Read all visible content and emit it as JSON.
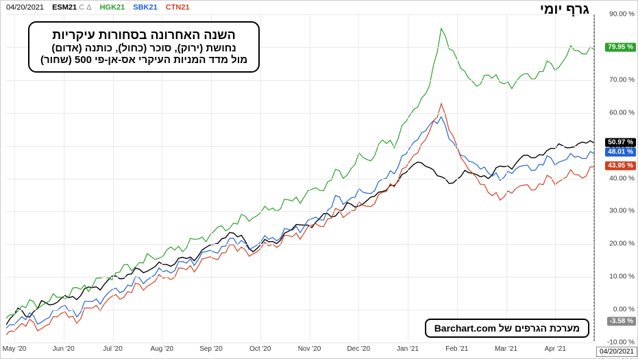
{
  "header": {
    "date": "04/20/2021",
    "symbols": [
      {
        "label": "ESM21",
        "suffix": "C Δ",
        "color": "#000000"
      },
      {
        "label": "HGK21",
        "suffix": "",
        "color": "#2aa02a"
      },
      {
        "label": "SBK21",
        "suffix": "",
        "color": "#2060d0"
      },
      {
        "label": "CTN21",
        "suffix": "",
        "color": "#d04020"
      }
    ]
  },
  "titles": {
    "top_right": "גרף יומי",
    "info_box_title": "השנה האחרונה בסחורות עיקריות",
    "info_box_line1": "נחושת (ירוק), סוכר (כחול), כותנה (אדום)",
    "info_box_line2": "מול מדד המניות העיקרי אס-אן-פי 500 (שחור)",
    "bottom_box": "מערכת הגרפים של Barchart.com"
  },
  "y_axis": {
    "min": -10,
    "max": 90,
    "step": 10,
    "label_suffix": " %",
    "tick_color": "#333333"
  },
  "x_axis": {
    "ticks": [
      "May '20",
      "Jun '20",
      "Jul '20",
      "Aug '20",
      "Sep '20",
      "Oct '20",
      "Nov '20",
      "Dec '20",
      "Jan '21",
      "Feb '21",
      "Mar '21",
      "Apr '21"
    ],
    "end_date_badge": "04/20/2021"
  },
  "badges": [
    {
      "value": "79.95 %",
      "y": 79.95,
      "bg": "#2aa02a"
    },
    {
      "value": "50.97 %",
      "y": 50.97,
      "bg": "#000000"
    },
    {
      "value": "48.01 %",
      "y": 48.01,
      "bg": "#2060d0"
    },
    {
      "value": "43.95 %",
      "y": 43.95,
      "bg": "#d04020"
    },
    {
      "value": "-3.58 %",
      "y": -3.58,
      "bg": "#888888"
    }
  ],
  "series": {
    "esm21_black": {
      "color": "#000000",
      "width": 1.4,
      "points": [
        [
          0,
          -5
        ],
        [
          2,
          0
        ],
        [
          4,
          -3
        ],
        [
          6,
          2
        ],
        [
          8,
          1
        ],
        [
          10,
          4
        ],
        [
          12,
          3
        ],
        [
          14,
          7
        ],
        [
          16,
          6
        ],
        [
          18,
          10
        ],
        [
          20,
          9
        ],
        [
          22,
          12
        ],
        [
          24,
          11
        ],
        [
          26,
          14
        ],
        [
          28,
          13
        ],
        [
          30,
          16
        ],
        [
          32,
          15
        ],
        [
          34,
          19
        ],
        [
          36,
          20
        ],
        [
          38,
          23
        ],
        [
          40,
          22
        ],
        [
          42,
          17
        ],
        [
          44,
          21
        ],
        [
          46,
          20
        ],
        [
          48,
          24
        ],
        [
          50,
          26
        ],
        [
          52,
          25
        ],
        [
          54,
          29
        ],
        [
          56,
          28
        ],
        [
          58,
          32
        ],
        [
          60,
          31
        ],
        [
          62,
          34
        ],
        [
          64,
          36
        ],
        [
          66,
          38
        ],
        [
          68,
          42
        ],
        [
          70,
          45
        ],
        [
          72,
          43
        ],
        [
          74,
          40
        ],
        [
          76,
          38
        ],
        [
          78,
          42
        ],
        [
          80,
          41
        ],
        [
          82,
          40
        ],
        [
          84,
          44
        ],
        [
          86,
          43
        ],
        [
          88,
          47
        ],
        [
          90,
          46
        ],
        [
          92,
          48
        ],
        [
          94,
          50
        ],
        [
          96,
          49
        ],
        [
          98,
          51
        ],
        [
          100,
          50.97
        ]
      ]
    },
    "hgk21_green": {
      "color": "#2aa02a",
      "width": 1.2,
      "points": [
        [
          0,
          -3
        ],
        [
          2,
          -1
        ],
        [
          4,
          2
        ],
        [
          6,
          0
        ],
        [
          8,
          4
        ],
        [
          10,
          3
        ],
        [
          12,
          7
        ],
        [
          14,
          6
        ],
        [
          16,
          10
        ],
        [
          18,
          9
        ],
        [
          20,
          13
        ],
        [
          22,
          12
        ],
        [
          24,
          16
        ],
        [
          26,
          15
        ],
        [
          28,
          19
        ],
        [
          30,
          18
        ],
        [
          32,
          22
        ],
        [
          34,
          21
        ],
        [
          36,
          25
        ],
        [
          38,
          24
        ],
        [
          40,
          28
        ],
        [
          42,
          27
        ],
        [
          44,
          31
        ],
        [
          46,
          30
        ],
        [
          48,
          34
        ],
        [
          50,
          33
        ],
        [
          52,
          37
        ],
        [
          54,
          36
        ],
        [
          56,
          42
        ],
        [
          58,
          40
        ],
        [
          60,
          47
        ],
        [
          62,
          45
        ],
        [
          64,
          52
        ],
        [
          66,
          50
        ],
        [
          68,
          58
        ],
        [
          70,
          62
        ],
        [
          72,
          68
        ],
        [
          74,
          85
        ],
        [
          76,
          78
        ],
        [
          78,
          72
        ],
        [
          80,
          68
        ],
        [
          82,
          72
        ],
        [
          84,
          70
        ],
        [
          86,
          68
        ],
        [
          88,
          72
        ],
        [
          90,
          70
        ],
        [
          92,
          75
        ],
        [
          94,
          73
        ],
        [
          96,
          80
        ],
        [
          98,
          78
        ],
        [
          100,
          79.95
        ]
      ]
    },
    "sbk21_blue": {
      "color": "#2060d0",
      "width": 1.2,
      "points": [
        [
          0,
          -6
        ],
        [
          2,
          -4
        ],
        [
          4,
          -2
        ],
        [
          6,
          -5
        ],
        [
          8,
          -1
        ],
        [
          10,
          1
        ],
        [
          12,
          -2
        ],
        [
          14,
          3
        ],
        [
          16,
          2
        ],
        [
          18,
          6
        ],
        [
          20,
          5
        ],
        [
          22,
          9
        ],
        [
          24,
          8
        ],
        [
          26,
          12
        ],
        [
          28,
          11
        ],
        [
          30,
          15
        ],
        [
          32,
          14
        ],
        [
          34,
          18
        ],
        [
          36,
          17
        ],
        [
          38,
          21
        ],
        [
          40,
          20
        ],
        [
          42,
          18
        ],
        [
          44,
          22
        ],
        [
          46,
          21
        ],
        [
          48,
          25
        ],
        [
          50,
          24
        ],
        [
          52,
          28
        ],
        [
          54,
          27
        ],
        [
          56,
          34
        ],
        [
          58,
          32
        ],
        [
          60,
          36
        ],
        [
          62,
          35
        ],
        [
          64,
          40
        ],
        [
          66,
          42
        ],
        [
          68,
          48
        ],
        [
          70,
          52
        ],
        [
          72,
          56
        ],
        [
          74,
          58
        ],
        [
          76,
          50
        ],
        [
          78,
          46
        ],
        [
          80,
          44
        ],
        [
          82,
          42
        ],
        [
          84,
          40
        ],
        [
          86,
          42
        ],
        [
          88,
          44
        ],
        [
          90,
          42
        ],
        [
          92,
          46
        ],
        [
          94,
          44
        ],
        [
          96,
          47
        ],
        [
          98,
          46
        ],
        [
          100,
          48.01
        ]
      ]
    },
    "ctn21_red": {
      "color": "#d04020",
      "width": 1.2,
      "points": [
        [
          0,
          -8
        ],
        [
          2,
          -6
        ],
        [
          4,
          -4
        ],
        [
          6,
          -7
        ],
        [
          8,
          -3
        ],
        [
          10,
          -1
        ],
        [
          12,
          -4
        ],
        [
          14,
          1
        ],
        [
          16,
          0
        ],
        [
          18,
          4
        ],
        [
          20,
          3
        ],
        [
          22,
          7
        ],
        [
          24,
          6
        ],
        [
          26,
          10
        ],
        [
          28,
          9
        ],
        [
          30,
          13
        ],
        [
          32,
          12
        ],
        [
          34,
          16
        ],
        [
          36,
          15
        ],
        [
          38,
          19
        ],
        [
          40,
          18
        ],
        [
          42,
          16
        ],
        [
          44,
          20
        ],
        [
          46,
          19
        ],
        [
          48,
          23
        ],
        [
          50,
          22
        ],
        [
          52,
          26
        ],
        [
          54,
          25
        ],
        [
          56,
          30
        ],
        [
          58,
          28
        ],
        [
          60,
          32
        ],
        [
          62,
          31
        ],
        [
          64,
          36
        ],
        [
          66,
          38
        ],
        [
          68,
          44
        ],
        [
          70,
          48
        ],
        [
          72,
          54
        ],
        [
          74,
          62
        ],
        [
          76,
          52
        ],
        [
          78,
          44
        ],
        [
          80,
          40
        ],
        [
          82,
          36
        ],
        [
          84,
          34
        ],
        [
          86,
          36
        ],
        [
          88,
          38
        ],
        [
          90,
          36
        ],
        [
          92,
          40
        ],
        [
          94,
          38
        ],
        [
          96,
          42
        ],
        [
          98,
          40
        ],
        [
          100,
          43.95
        ]
      ]
    }
  },
  "style": {
    "grid_color": "#e8e8e8",
    "background": "#ffffff",
    "plot_border": "#888888"
  }
}
